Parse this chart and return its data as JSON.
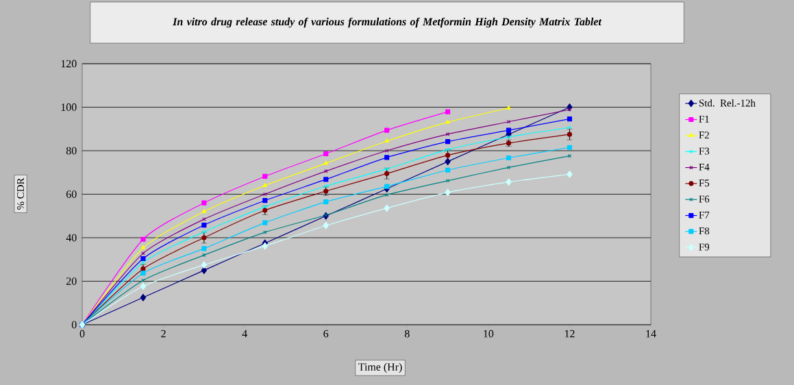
{
  "chart_data": {
    "type": "line",
    "title": "In vitro drug release study of various formulations of Metformin High Density Matrix Tablet",
    "xlabel": "Time (Hr)",
    "ylabel": "% CDR",
    "x": [
      0,
      1.5,
      3,
      4.5,
      6,
      7.5,
      9,
      10.5,
      12
    ],
    "xlim": [
      0,
      14
    ],
    "xticks": [
      0,
      2,
      4,
      6,
      8,
      10,
      12,
      14
    ],
    "ylim": [
      0,
      120
    ],
    "yticks": [
      0,
      20,
      40,
      60,
      80,
      100,
      120
    ],
    "grid": "y",
    "legend": "right",
    "series": [
      {
        "name": "Std. Rel.-12h",
        "color": "#000080",
        "marker": "diamond",
        "values": [
          0,
          12.5,
          25,
          37.5,
          50,
          62.5,
          75,
          87.5,
          100
        ]
      },
      {
        "name": "F1",
        "color": "#ff00ff",
        "marker": "square",
        "values": [
          0,
          39.3,
          56,
          68.2,
          78.6,
          89.4,
          97.9,
          null,
          null
        ]
      },
      {
        "name": "F2",
        "color": "#ffff00",
        "marker": "triangle",
        "values": [
          0,
          35.4,
          52,
          64,
          74.2,
          84.4,
          93.1,
          99.6,
          null
        ]
      },
      {
        "name": "F3",
        "color": "#00ffff",
        "marker": "cross",
        "values": [
          0,
          28.6,
          42.7,
          54.2,
          63.7,
          71.6,
          80.5,
          86.3,
          90.7
        ]
      },
      {
        "name": "F4",
        "color": "#800080",
        "marker": "cross",
        "values": [
          0,
          32.8,
          48.5,
          60,
          70.6,
          80,
          87.6,
          93.3,
          98.9
        ]
      },
      {
        "name": "F5",
        "color": "#800000",
        "marker": "circle",
        "values": [
          0,
          25.7,
          40,
          52.6,
          61.4,
          69.5,
          77.9,
          83.5,
          87.5
        ],
        "errors": [
          null,
          2,
          2.5,
          2,
          2,
          2.5,
          2.5,
          1.5,
          2.5
        ]
      },
      {
        "name": "F6",
        "color": "#008080",
        "marker": "cross",
        "values": [
          0,
          20.4,
          32,
          42.5,
          50.4,
          59.7,
          66.2,
          72.3,
          77.6
        ]
      },
      {
        "name": "F7",
        "color": "#0000ff",
        "marker": "square",
        "values": [
          0,
          30.4,
          45.8,
          57.1,
          66.8,
          76.9,
          84.2,
          89.4,
          94.6
        ]
      },
      {
        "name": "F8",
        "color": "#00ccff",
        "marker": "square",
        "values": [
          0,
          23.7,
          35,
          46.9,
          56.5,
          63.6,
          71.1,
          76.7,
          81.5
        ]
      },
      {
        "name": "F9",
        "color": "#ccffff",
        "marker": "diamond",
        "values": [
          0,
          17.7,
          27.5,
          36.2,
          45.6,
          53.6,
          60.8,
          65.6,
          69.2
        ]
      }
    ]
  }
}
